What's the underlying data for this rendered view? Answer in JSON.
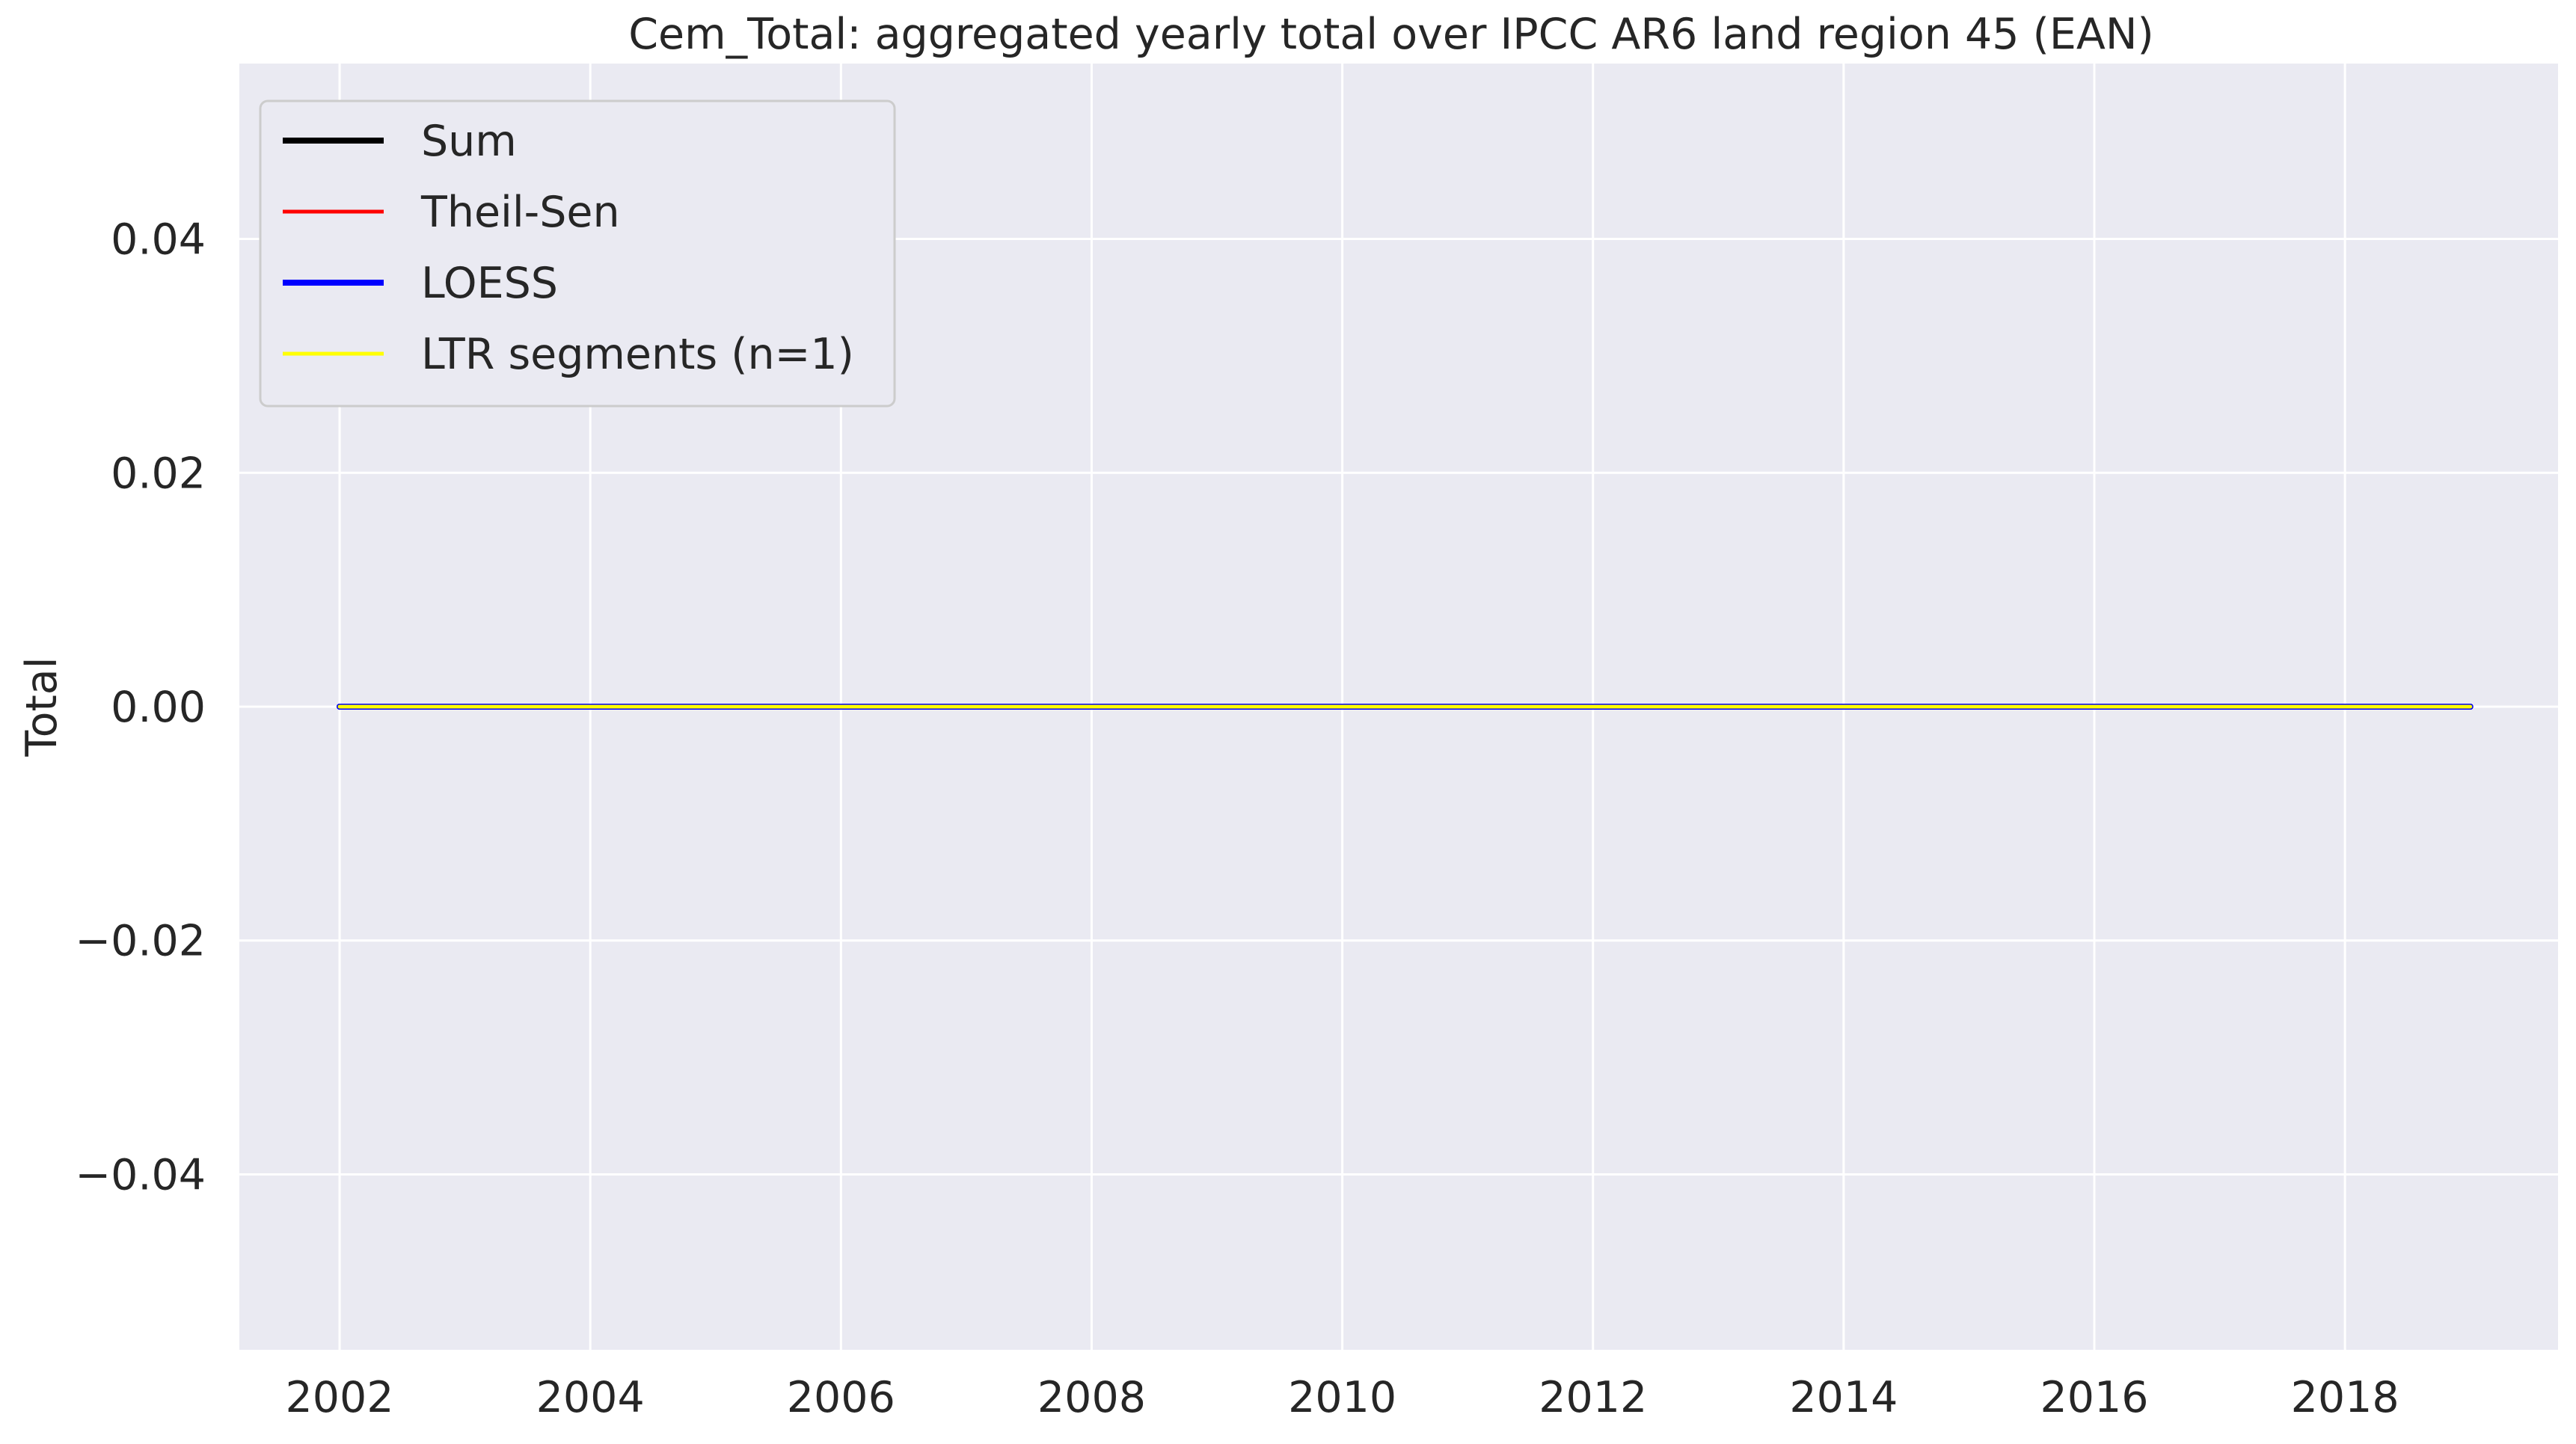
{
  "chart_data": {
    "type": "line",
    "title": "Cem_Total: aggregated yearly total over IPCC AR6 land region 45 (EAN)",
    "xlabel": "",
    "ylabel": "Total",
    "xlim": [
      2001.2,
      2019.7
    ],
    "ylim": [
      -0.055,
      0.055
    ],
    "x_ticks": [
      2002,
      2004,
      2006,
      2008,
      2010,
      2012,
      2014,
      2016,
      2018
    ],
    "y_ticks": [
      0.04,
      0.02,
      0.0,
      -0.02,
      -0.04
    ],
    "y_tick_labels": [
      "0.04",
      "0.02",
      "0.00",
      "−0.02",
      "−0.04"
    ],
    "grid": true,
    "legend_position": "top-left",
    "x": [
      2002,
      2003,
      2004,
      2005,
      2006,
      2007,
      2008,
      2009,
      2010,
      2011,
      2012,
      2013,
      2014,
      2015,
      2016,
      2017,
      2018,
      2019
    ],
    "series": [
      {
        "name": "Sum",
        "color": "#000000",
        "width": "thick",
        "values": [
          0,
          0,
          0,
          0,
          0,
          0,
          0,
          0,
          0,
          0,
          0,
          0,
          0,
          0,
          0,
          0,
          0,
          0
        ]
      },
      {
        "name": "Theil-Sen",
        "color": "#ff0000",
        "width": "normal",
        "values": [
          0,
          0,
          0,
          0,
          0,
          0,
          0,
          0,
          0,
          0,
          0,
          0,
          0,
          0,
          0,
          0,
          0,
          0
        ]
      },
      {
        "name": "LOESS",
        "color": "#0000ff",
        "width": "thick",
        "values": [
          0,
          0,
          0,
          0,
          0,
          0,
          0,
          0,
          0,
          0,
          0,
          0,
          0,
          0,
          0,
          0,
          0,
          0
        ]
      },
      {
        "name": "LTR segments (n=1)",
        "color": "#ffff00",
        "width": "normal",
        "values": [
          0,
          0,
          0,
          0,
          0,
          0,
          0,
          0,
          0,
          0,
          0,
          0,
          0,
          0,
          0,
          0,
          0,
          0
        ]
      }
    ]
  }
}
